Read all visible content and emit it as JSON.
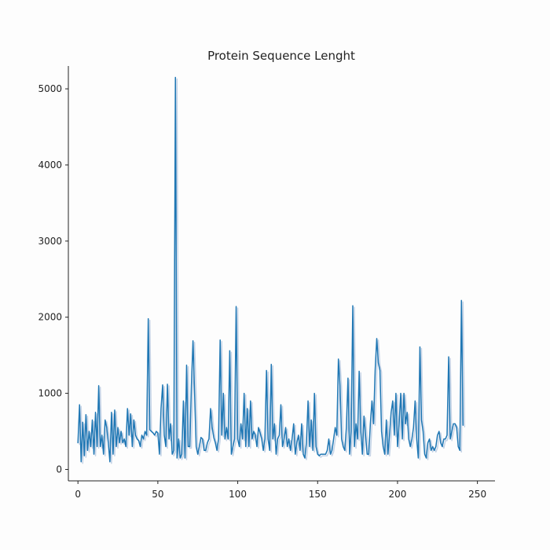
{
  "chart_data": {
    "type": "line",
    "title": "Protein Sequence Lenght",
    "xlabel": "",
    "ylabel": "",
    "xlim": [
      -6,
      261
    ],
    "ylim": [
      -150,
      5300
    ],
    "grid": false,
    "legend": "none",
    "x_ticks": [
      0,
      50,
      100,
      150,
      200,
      250
    ],
    "y_ticks": [
      0,
      1000,
      2000,
      3000,
      4000,
      5000
    ],
    "colors": {
      "line": "#1f77b4",
      "shadow": "#c5d3e6",
      "axis": "#222222"
    },
    "series": [
      {
        "values": [
          350,
          850,
          100,
          620,
          180,
          720,
          250,
          500,
          300,
          650,
          200,
          750,
          300,
          1100,
          300,
          450,
          200,
          650,
          550,
          350,
          100,
          750,
          200,
          780,
          300,
          550,
          350,
          500,
          350,
          400,
          300,
          800,
          450,
          730,
          300,
          650,
          450,
          400,
          380,
          300,
          450,
          400,
          500,
          450,
          1980,
          520,
          500,
          480,
          450,
          500,
          480,
          200,
          800,
          1110,
          450,
          300,
          1120,
          400,
          600,
          200,
          250,
          5150,
          150,
          400,
          150,
          200,
          900,
          150,
          1370,
          300,
          300,
          1100,
          1690,
          1000,
          300,
          200,
          300,
          420,
          400,
          250,
          250,
          350,
          400,
          800,
          550,
          420,
          350,
          250,
          400,
          1700,
          450,
          1000,
          400,
          550,
          400,
          1560,
          200,
          300,
          400,
          2140,
          400,
          300,
          600,
          400,
          1000,
          300,
          800,
          300,
          900,
          400,
          500,
          450,
          300,
          550,
          480,
          400,
          250,
          400,
          1300,
          400,
          250,
          1380,
          400,
          600,
          200,
          400,
          450,
          850,
          300,
          400,
          550,
          300,
          400,
          250,
          400,
          600,
          200,
          350,
          450,
          250,
          600,
          200,
          150,
          350,
          900,
          300,
          650,
          250,
          1000,
          300,
          200,
          180,
          200,
          200,
          200,
          200,
          250,
          400,
          200,
          250,
          400,
          550,
          450,
          1450,
          1100,
          400,
          300,
          250,
          550,
          1200,
          200,
          500,
          2150,
          300,
          600,
          400,
          1290,
          500,
          200,
          700,
          450,
          200,
          200,
          600,
          900,
          600,
          1300,
          1720,
          1400,
          1300,
          500,
          300,
          200,
          650,
          200,
          450,
          750,
          900,
          450,
          1000,
          300,
          600,
          1000,
          400,
          1000,
          600,
          750,
          400,
          300,
          400,
          550,
          900,
          400,
          150,
          1610,
          650,
          500,
          200,
          150,
          350,
          400,
          250,
          300,
          250,
          300,
          450,
          500,
          350,
          300,
          400,
          400,
          450,
          1480,
          400,
          500,
          600,
          600,
          550,
          300,
          250,
          2220,
          580
        ]
      }
    ]
  }
}
